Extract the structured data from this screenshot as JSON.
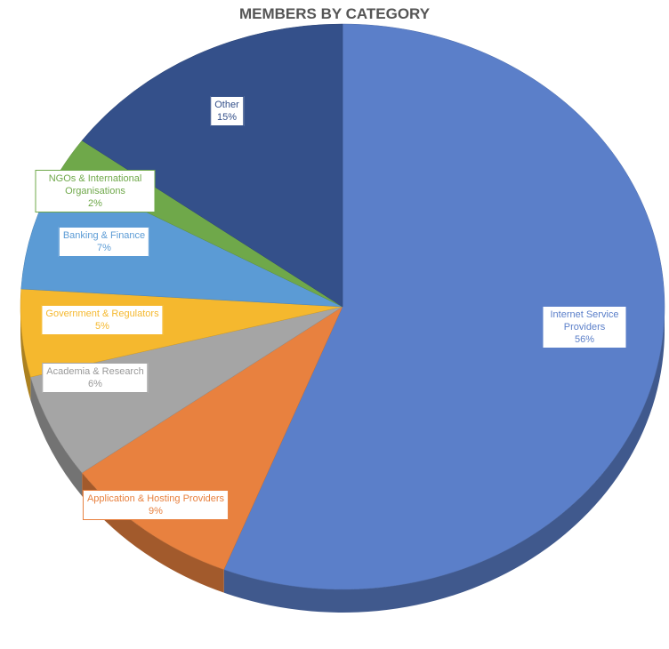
{
  "chart_data": {
    "type": "pie",
    "title": "MEMBERS BY CATEGORY",
    "categories": [
      "Internet Service Providers",
      "Application & Hosting Providers",
      "Academia & Research",
      "Government & Regulators",
      "Banking & Finance",
      "NGOs & International Organisations",
      "Other"
    ],
    "values": [
      56,
      9,
      6,
      5,
      7,
      2,
      15
    ],
    "value_labels": [
      "56%",
      "9%",
      "6%",
      "5%",
      "7%",
      "2%",
      "15%"
    ],
    "colors": [
      "#5b7fc9",
      "#e8813f",
      "#a5a5a5",
      "#f5b82e",
      "#5b9bd5",
      "#6fa84a",
      "#34508a"
    ]
  }
}
